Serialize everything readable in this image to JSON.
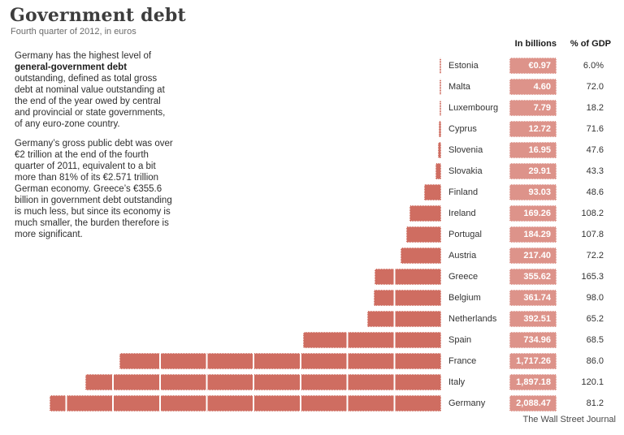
{
  "header": {
    "title": "Government debt",
    "subtitle": "Fourth quarter of 2012, in euros"
  },
  "commentary": {
    "p1_pre": "Germany has the highest level of ",
    "p1_bold": "general-government debt",
    "p1_post": " outstanding, defined as total gross debt at nominal value outstanding at the end of the year owed by central and provincial or state governments, of any euro-zone country.",
    "p2": "Germany’s gross public debt was over €2 trillion at the end of the fourth quarter of 2011, equivalent to a bit more than 81% of its €2.571 trillion German economy. Greece’s €355.6 billion in government debt outstanding is much less, but since its economy is much smaller, the burden therefore is more significant.",
    "column_headers": {
      "billions": "In billions",
      "gdp": "% of GDP"
    }
  },
  "chart_data": {
    "type": "bar",
    "orientation": "horizontal",
    "title": "Government debt",
    "subtitle": "Fourth quarter of 2012, in euros",
    "unit": "billions of euros",
    "segment_size_billions": 250,
    "legend_position": "none",
    "grid": false,
    "xlim": [
      0,
      2100
    ],
    "bar_color": "#cf6d61",
    "box_color": "#dd938a",
    "categories": [
      "Estonia",
      "Malta",
      "Luxembourg",
      "Cyprus",
      "Slovenia",
      "Slovakia",
      "Finland",
      "Ireland",
      "Portugal",
      "Austria",
      "Greece",
      "Belgium",
      "Netherlands",
      "Spain",
      "France",
      "Italy",
      "Germany"
    ],
    "series": [
      {
        "name": "Debt in billions of euros",
        "values": [
          0.97,
          4.6,
          7.79,
          12.72,
          16.95,
          29.91,
          93.03,
          169.26,
          184.29,
          217.4,
          355.62,
          361.74,
          392.51,
          734.96,
          1717.26,
          1897.18,
          2088.47
        ],
        "labels": [
          "€0.97",
          "4.60",
          "7.79",
          "12.72",
          "16.95",
          "29.91",
          "93.03",
          "169.26",
          "184.29",
          "217.40",
          "355.62",
          "361.74",
          "392.51",
          "734.96",
          "1,717.26",
          "1,897.18",
          "2,088.47"
        ]
      },
      {
        "name": "% of GDP",
        "values": [
          6.0,
          72.0,
          18.2,
          71.6,
          47.6,
          43.3,
          48.6,
          108.2,
          107.8,
          72.2,
          165.3,
          98.0,
          65.2,
          68.5,
          86.0,
          120.1,
          81.2
        ],
        "labels": [
          "6.0%",
          "72.0",
          "18.2",
          "71.6",
          "47.6",
          "43.3",
          "48.6",
          "108.2",
          "107.8",
          "72.2",
          "165.3",
          "98.0",
          "65.2",
          "68.5",
          "86.0",
          "120.1",
          "81.2"
        ]
      }
    ]
  },
  "footer": {
    "source": "The Wall Street Journal"
  }
}
